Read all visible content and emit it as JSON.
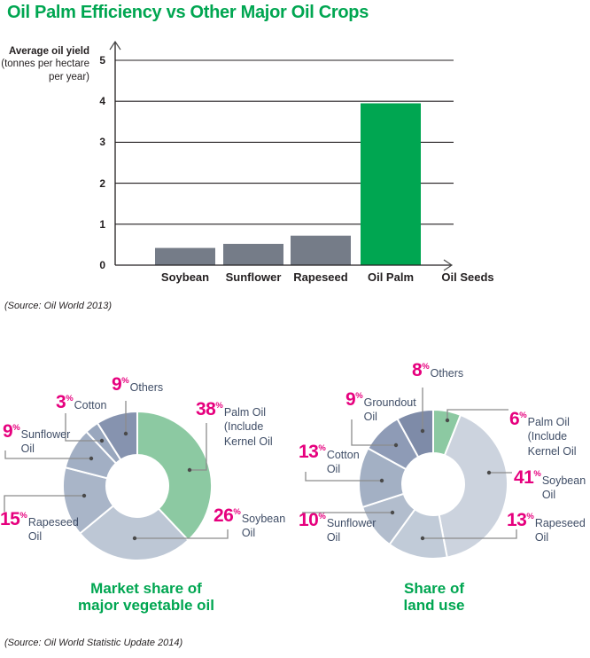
{
  "page": {
    "title": "Oil Palm Efficiency vs Other Major Oil Crops",
    "source_bar": "(Source: Oil World 2013)",
    "source_donuts": "(Source: Oil World Statistic Update 2014)",
    "percent_sign": "%",
    "colors": {
      "green": "#00A651",
      "bar_gray": "#757C88",
      "pink": "#E6007E",
      "label_navy": "#3F4D66",
      "axis_dark": "#231F20",
      "leader_gray": "#8C8C8C"
    }
  },
  "chart_data": [
    {
      "type": "bar",
      "title": "",
      "ylabel_lines": [
        "Average oil yield",
        "(tonnes per hectare",
        "per year)"
      ],
      "xlabel": "Oil Seeds",
      "categories": [
        "Soybean",
        "Sunflower",
        "Rapeseed",
        "Oil Palm"
      ],
      "values": [
        0.42,
        0.52,
        0.72,
        3.95
      ],
      "bar_colors": [
        "#757C88",
        "#757C88",
        "#757C88",
        "#00A651"
      ],
      "yticks": [
        0,
        1,
        2,
        3,
        4,
        5
      ],
      "ylim": [
        0,
        5.4
      ],
      "grid": true,
      "legend": "none"
    },
    {
      "type": "donut",
      "title": "Market share of\nmajor vegetable oil",
      "slices": [
        {
          "id": "palm",
          "label": "Palm Oil\n(Include\nKernel Oil",
          "value": 38,
          "color": "#8CC9A2"
        },
        {
          "id": "soybean",
          "label": "Soybean\nOil",
          "value": 26,
          "color": "#BDC7D5"
        },
        {
          "id": "rapeseed",
          "label": "Rapeseed\nOil",
          "value": 15,
          "color": "#A9B5C8"
        },
        {
          "id": "sunflower",
          "label": "Sunflower\nOil",
          "value": 9,
          "color": "#A2AFC4"
        },
        {
          "id": "cotton",
          "label": "Cotton",
          "value": 3,
          "color": "#99A7BE"
        },
        {
          "id": "others",
          "label": "Others",
          "value": 9,
          "color": "#8693AF"
        }
      ]
    },
    {
      "type": "donut",
      "title": "Share of\nland use",
      "slices": [
        {
          "id": "palm",
          "label": "Palm Oil\n(Include\nKernel Oil",
          "value": 6,
          "color": "#8CC9A2"
        },
        {
          "id": "soybean",
          "label": "Soybean\nOil",
          "value": 41,
          "color": "#CCD3DE"
        },
        {
          "id": "rapeseed",
          "label": "Rapeseed\nOil",
          "value": 13,
          "color": "#C1CBD8"
        },
        {
          "id": "sunflower",
          "label": "Sunflower\nOil",
          "value": 10,
          "color": "#B2BDCD"
        },
        {
          "id": "cotton",
          "label": "Cotton\nOil",
          "value": 13,
          "color": "#A3B0C4"
        },
        {
          "id": "groundout",
          "label": "Groundout\nOil",
          "value": 9,
          "color": "#8E9BB6"
        },
        {
          "id": "others",
          "label": "Others",
          "value": 8,
          "color": "#7E8BA8"
        }
      ]
    }
  ]
}
